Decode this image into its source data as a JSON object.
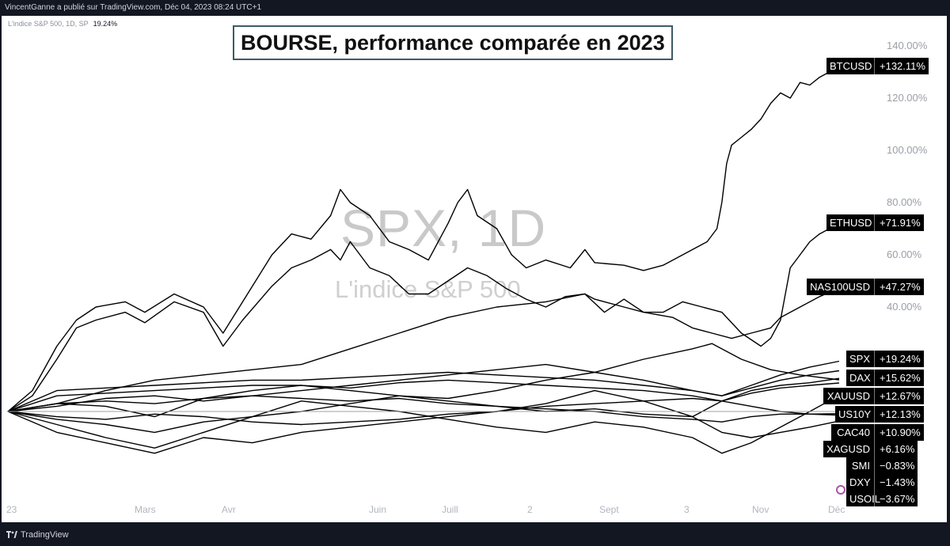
{
  "header": {
    "publisher_text": "VincentGanne a publié sur TradingView.com, Déc 04, 2023 08:24 UTC+1",
    "symbol_line": "L'indice S&P 500, 1D, SP",
    "symbol_value": "19.24%"
  },
  "watermark": {
    "main": "SPX, 1D",
    "sub": "L'indice S&P 500"
  },
  "footer": {
    "brand": "TradingView"
  },
  "colors": {
    "background": "#131722",
    "line": "#000000",
    "tag_bg": "#000000"
  },
  "chart_data": {
    "type": "line",
    "title": "BOURSE, performance comparée en 2023",
    "x_labels": [
      "23",
      "Mars",
      "Avr",
      "Juin",
      "Juill",
      "2",
      "Sept",
      "3",
      "Nov",
      "Déc"
    ],
    "y_ticks": [
      "40.00%",
      "60.00%",
      "80.00%",
      "100.00%",
      "120.00%",
      "140.00%"
    ],
    "ylim": [
      -20,
      145
    ],
    "grid": false,
    "legend": "right-edge labels",
    "series": [
      {
        "name": "BTCUSD",
        "label": "+132.11%",
        "last": 132.11,
        "points": [
          [
            0,
            0
          ],
          [
            5,
            8
          ],
          [
            10,
            25
          ],
          [
            14,
            35
          ],
          [
            18,
            40
          ],
          [
            24,
            42
          ],
          [
            28,
            38
          ],
          [
            34,
            45
          ],
          [
            40,
            40
          ],
          [
            44,
            30
          ],
          [
            48,
            42
          ],
          [
            54,
            60
          ],
          [
            58,
            68
          ],
          [
            62,
            66
          ],
          [
            66,
            75
          ],
          [
            68,
            85
          ],
          [
            70,
            80
          ],
          [
            74,
            75
          ],
          [
            78,
            65
          ],
          [
            82,
            62
          ],
          [
            86,
            58
          ],
          [
            90,
            72
          ],
          [
            92,
            80
          ],
          [
            94,
            85
          ],
          [
            96,
            75
          ],
          [
            100,
            70
          ],
          [
            103,
            60
          ],
          [
            106,
            55
          ],
          [
            110,
            58
          ],
          [
            115,
            55
          ],
          [
            118,
            62
          ],
          [
            120,
            57
          ],
          [
            126,
            56
          ],
          [
            130,
            54
          ],
          [
            134,
            56
          ],
          [
            138,
            60
          ],
          [
            140,
            62
          ],
          [
            143,
            65
          ],
          [
            145,
            70
          ],
          [
            146,
            80
          ],
          [
            147,
            95
          ],
          [
            148,
            102
          ],
          [
            150,
            105
          ],
          [
            152,
            108
          ],
          [
            154,
            112
          ],
          [
            156,
            118
          ],
          [
            158,
            122
          ],
          [
            160,
            120
          ],
          [
            162,
            126
          ],
          [
            164,
            125
          ],
          [
            166,
            128
          ],
          [
            168,
            130
          ],
          [
            170,
            132.11
          ]
        ]
      },
      {
        "name": "ETHUSD",
        "label": "+71.91%",
        "last": 71.91,
        "points": [
          [
            0,
            0
          ],
          [
            5,
            6
          ],
          [
            10,
            20
          ],
          [
            14,
            32
          ],
          [
            18,
            35
          ],
          [
            24,
            38
          ],
          [
            28,
            34
          ],
          [
            34,
            42
          ],
          [
            40,
            38
          ],
          [
            44,
            25
          ],
          [
            48,
            35
          ],
          [
            54,
            48
          ],
          [
            58,
            55
          ],
          [
            62,
            58
          ],
          [
            66,
            62
          ],
          [
            68,
            58
          ],
          [
            70,
            65
          ],
          [
            74,
            55
          ],
          [
            78,
            52
          ],
          [
            82,
            45
          ],
          [
            86,
            45
          ],
          [
            90,
            50
          ],
          [
            94,
            55
          ],
          [
            98,
            52
          ],
          [
            102,
            47
          ],
          [
            106,
            43
          ],
          [
            110,
            40
          ],
          [
            114,
            44
          ],
          [
            118,
            45
          ],
          [
            122,
            38
          ],
          [
            126,
            43
          ],
          [
            130,
            38
          ],
          [
            134,
            38
          ],
          [
            138,
            42
          ],
          [
            142,
            40
          ],
          [
            146,
            38
          ],
          [
            150,
            30
          ],
          [
            154,
            25
          ],
          [
            156,
            28
          ],
          [
            158,
            35
          ],
          [
            160,
            55
          ],
          [
            162,
            60
          ],
          [
            164,
            65
          ],
          [
            166,
            68
          ],
          [
            168,
            70
          ],
          [
            170,
            71.91
          ]
        ]
      },
      {
        "name": "NAS100USD",
        "label": "+47.27%",
        "last": 47.27,
        "points": [
          [
            0,
            0
          ],
          [
            10,
            3
          ],
          [
            20,
            8
          ],
          [
            30,
            12
          ],
          [
            40,
            14
          ],
          [
            50,
            16
          ],
          [
            60,
            18
          ],
          [
            70,
            24
          ],
          [
            80,
            30
          ],
          [
            90,
            36
          ],
          [
            100,
            40
          ],
          [
            110,
            42
          ],
          [
            118,
            45
          ],
          [
            120,
            43
          ],
          [
            126,
            40
          ],
          [
            130,
            38
          ],
          [
            136,
            36
          ],
          [
            140,
            32
          ],
          [
            144,
            30
          ],
          [
            148,
            28
          ],
          [
            152,
            30
          ],
          [
            156,
            32
          ],
          [
            158,
            36
          ],
          [
            162,
            40
          ],
          [
            166,
            44
          ],
          [
            170,
            47.27
          ]
        ]
      },
      {
        "name": "SPX",
        "label": "+19.24%",
        "last": 19.24,
        "points": [
          [
            0,
            0
          ],
          [
            10,
            2
          ],
          [
            20,
            5
          ],
          [
            30,
            6
          ],
          [
            40,
            4
          ],
          [
            50,
            6
          ],
          [
            60,
            8
          ],
          [
            70,
            10
          ],
          [
            80,
            12
          ],
          [
            90,
            14
          ],
          [
            100,
            16
          ],
          [
            110,
            18
          ],
          [
            120,
            15
          ],
          [
            130,
            12
          ],
          [
            140,
            8
          ],
          [
            146,
            6
          ],
          [
            152,
            10
          ],
          [
            158,
            14
          ],
          [
            164,
            17
          ],
          [
            170,
            19.24
          ]
        ]
      },
      {
        "name": "DAX",
        "label": "+15.62%",
        "last": 15.62,
        "points": [
          [
            0,
            0
          ],
          [
            10,
            8
          ],
          [
            20,
            9
          ],
          [
            30,
            10
          ],
          [
            40,
            11
          ],
          [
            50,
            12
          ],
          [
            60,
            12
          ],
          [
            70,
            13
          ],
          [
            80,
            14
          ],
          [
            90,
            15
          ],
          [
            100,
            14
          ],
          [
            110,
            13
          ],
          [
            120,
            12
          ],
          [
            130,
            10
          ],
          [
            140,
            8
          ],
          [
            146,
            6
          ],
          [
            152,
            9
          ],
          [
            158,
            12
          ],
          [
            164,
            14
          ],
          [
            170,
            15.62
          ]
        ]
      },
      {
        "name": "XAUUSD",
        "label": "+12.67%",
        "last": 12.67,
        "points": [
          [
            0,
            0
          ],
          [
            10,
            3
          ],
          [
            20,
            2
          ],
          [
            30,
            -2
          ],
          [
            40,
            5
          ],
          [
            50,
            8
          ],
          [
            60,
            10
          ],
          [
            70,
            8
          ],
          [
            80,
            6
          ],
          [
            90,
            4
          ],
          [
            100,
            2
          ],
          [
            110,
            0
          ],
          [
            120,
            1
          ],
          [
            130,
            -1
          ],
          [
            140,
            -2
          ],
          [
            146,
            4
          ],
          [
            152,
            8
          ],
          [
            158,
            10
          ],
          [
            164,
            11
          ],
          [
            170,
            12.67
          ]
        ]
      },
      {
        "name": "US10Y",
        "label": "+12.13%",
        "last": 12.13,
        "points": [
          [
            0,
            0
          ],
          [
            10,
            -3
          ],
          [
            20,
            -5
          ],
          [
            30,
            -8
          ],
          [
            40,
            -4
          ],
          [
            50,
            -2
          ],
          [
            60,
            0
          ],
          [
            70,
            3
          ],
          [
            80,
            6
          ],
          [
            90,
            5
          ],
          [
            100,
            8
          ],
          [
            110,
            12
          ],
          [
            120,
            15
          ],
          [
            130,
            20
          ],
          [
            140,
            24
          ],
          [
            144,
            26
          ],
          [
            150,
            20
          ],
          [
            156,
            16
          ],
          [
            162,
            14
          ],
          [
            170,
            12.13
          ]
        ]
      },
      {
        "name": "CAC40",
        "label": "+10.90%",
        "last": 10.9,
        "points": [
          [
            0,
            0
          ],
          [
            10,
            6
          ],
          [
            20,
            7
          ],
          [
            30,
            8
          ],
          [
            40,
            9
          ],
          [
            50,
            10
          ],
          [
            60,
            10
          ],
          [
            70,
            9
          ],
          [
            80,
            11
          ],
          [
            90,
            12
          ],
          [
            100,
            11
          ],
          [
            110,
            10
          ],
          [
            120,
            9
          ],
          [
            130,
            8
          ],
          [
            140,
            6
          ],
          [
            146,
            4
          ],
          [
            152,
            7
          ],
          [
            158,
            9
          ],
          [
            164,
            10
          ],
          [
            170,
            10.9
          ]
        ]
      },
      {
        "name": "XAGUSD",
        "label": "+6.16%",
        "last": 6.16,
        "points": [
          [
            0,
            0
          ],
          [
            10,
            -5
          ],
          [
            20,
            -10
          ],
          [
            30,
            -14
          ],
          [
            40,
            -8
          ],
          [
            50,
            -2
          ],
          [
            60,
            4
          ],
          [
            70,
            2
          ],
          [
            80,
            0
          ],
          [
            90,
            -3
          ],
          [
            100,
            -6
          ],
          [
            110,
            -8
          ],
          [
            120,
            -4
          ],
          [
            130,
            -6
          ],
          [
            140,
            -10
          ],
          [
            146,
            -16
          ],
          [
            152,
            -12
          ],
          [
            158,
            -6
          ],
          [
            164,
            0
          ],
          [
            170,
            6.16
          ]
        ]
      },
      {
        "name": "SMI",
        "label": "−0.83%",
        "last": -0.83,
        "points": [
          [
            0,
            0
          ],
          [
            10,
            3
          ],
          [
            20,
            4
          ],
          [
            30,
            3
          ],
          [
            40,
            5
          ],
          [
            50,
            6
          ],
          [
            60,
            5
          ],
          [
            70,
            4
          ],
          [
            80,
            5
          ],
          [
            90,
            3
          ],
          [
            100,
            2
          ],
          [
            110,
            1
          ],
          [
            120,
            0
          ],
          [
            130,
            -2
          ],
          [
            140,
            -3
          ],
          [
            146,
            -4
          ],
          [
            152,
            -2
          ],
          [
            158,
            -1
          ],
          [
            164,
            -1
          ],
          [
            170,
            -0.83
          ]
        ]
      },
      {
        "name": "DXY",
        "label": "−1.43%",
        "last": -1.43,
        "points": [
          [
            0,
            0
          ],
          [
            10,
            -2
          ],
          [
            20,
            -3
          ],
          [
            30,
            -1
          ],
          [
            40,
            -2
          ],
          [
            50,
            -4
          ],
          [
            60,
            -5
          ],
          [
            70,
            -4
          ],
          [
            80,
            -3
          ],
          [
            90,
            -1
          ],
          [
            100,
            0
          ],
          [
            110,
            2
          ],
          [
            120,
            3
          ],
          [
            130,
            4
          ],
          [
            140,
            5
          ],
          [
            146,
            4
          ],
          [
            152,
            2
          ],
          [
            158,
            0
          ],
          [
            164,
            -1
          ],
          [
            170,
            -1.43
          ]
        ]
      },
      {
        "name": "USOIL",
        "label": "−3.67%",
        "last": -3.67,
        "points": [
          [
            0,
            0
          ],
          [
            10,
            -8
          ],
          [
            20,
            -12
          ],
          [
            30,
            -16
          ],
          [
            40,
            -10
          ],
          [
            50,
            -12
          ],
          [
            60,
            -8
          ],
          [
            70,
            -6
          ],
          [
            80,
            -4
          ],
          [
            90,
            -2
          ],
          [
            100,
            0
          ],
          [
            110,
            3
          ],
          [
            120,
            8
          ],
          [
            130,
            4
          ],
          [
            140,
            -2
          ],
          [
            146,
            -8
          ],
          [
            152,
            -10
          ],
          [
            158,
            -8
          ],
          [
            164,
            -6
          ],
          [
            170,
            -3.67
          ]
        ]
      }
    ]
  }
}
